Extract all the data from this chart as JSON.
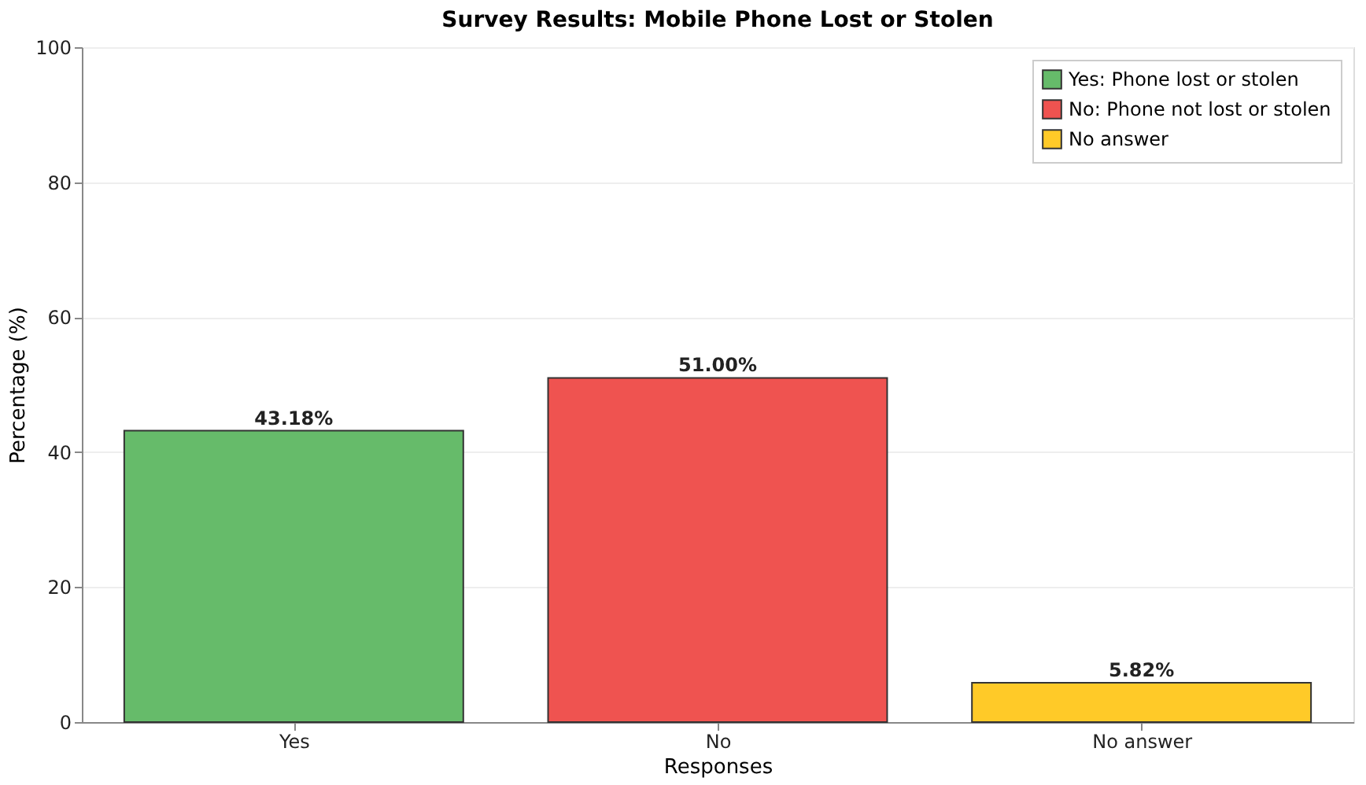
{
  "chart_data": {
    "type": "bar",
    "title": "Survey Results: Mobile Phone Lost or Stolen",
    "xlabel": "Responses",
    "ylabel": "Percentage (%)",
    "categories": [
      "Yes",
      "No",
      "No answer"
    ],
    "series": [
      {
        "name": "Yes: Phone lost or stolen",
        "color": "#66bb6a",
        "values": [
          43.18,
          null,
          null
        ]
      },
      {
        "name": "No: Phone not lost or stolen",
        "color": "#ef5350",
        "values": [
          null,
          51.0,
          null
        ]
      },
      {
        "name": "No answer",
        "color": "#ffca28",
        "values": [
          null,
          null,
          5.82
        ]
      }
    ],
    "value_labels": [
      "43.18%",
      "51.00%",
      "5.82%"
    ],
    "ylim": [
      0,
      100
    ],
    "yticks": [
      0,
      20,
      40,
      60,
      80,
      100
    ],
    "grid": "y",
    "legend": "top right"
  }
}
